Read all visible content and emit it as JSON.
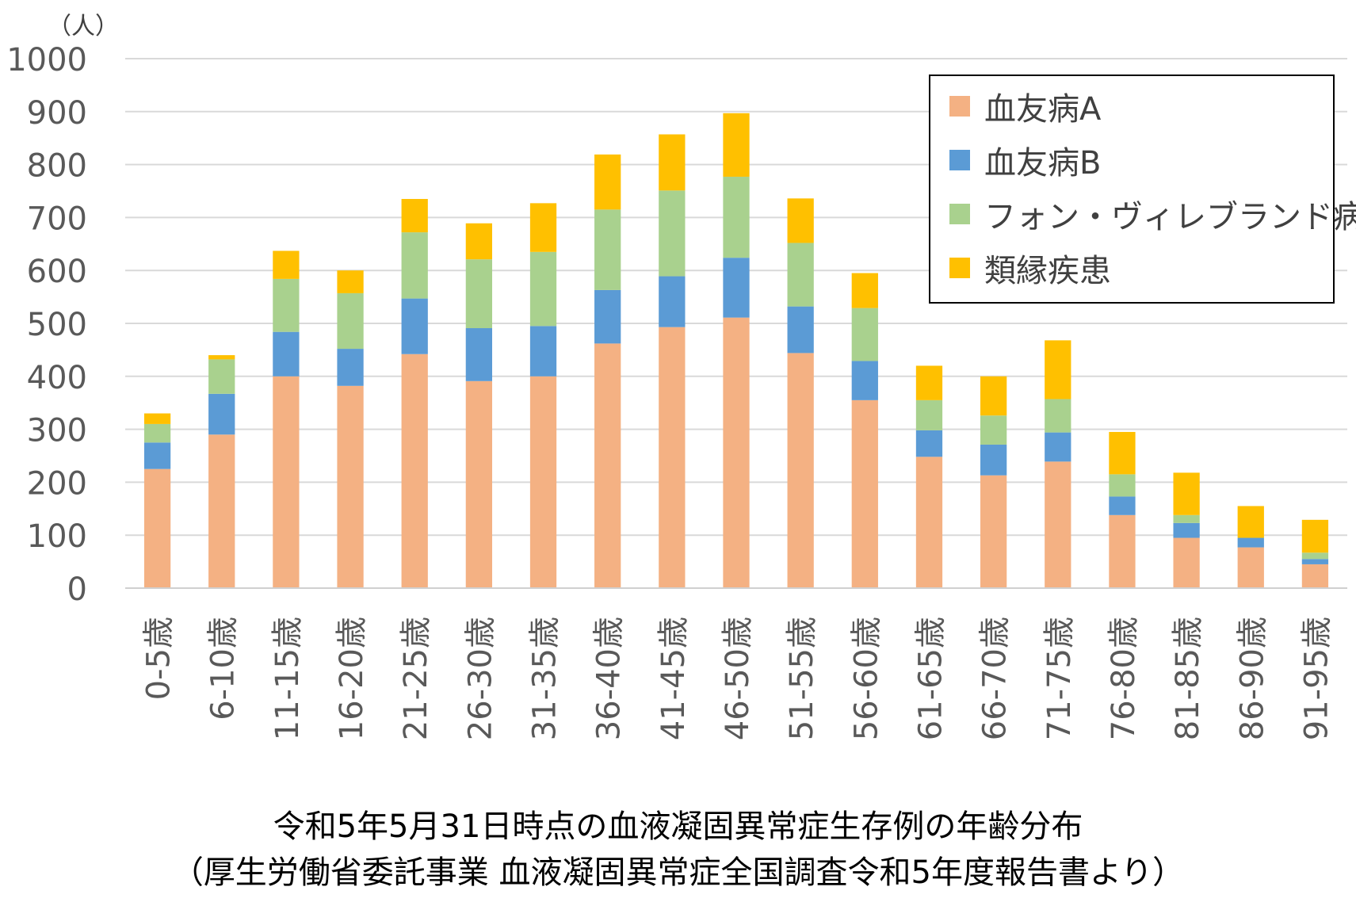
{
  "chart_data": {
    "type": "bar",
    "stacked": true,
    "unit_label": "（人）",
    "ylim": [
      0,
      1000
    ],
    "yticks": [
      0,
      100,
      200,
      300,
      400,
      500,
      600,
      700,
      800,
      900,
      1000
    ],
    "grid": true,
    "legend_position": "top-right",
    "categories": [
      "0-5歳",
      "6-10歳",
      "11-15歳",
      "16-20歳",
      "21-25歳",
      "26-30歳",
      "31-35歳",
      "36-40歳",
      "41-45歳",
      "46-50歳",
      "51-55歳",
      "56-60歳",
      "61-65歳",
      "66-70歳",
      "71-75歳",
      "76-80歳",
      "81-85歳",
      "86-90歳",
      "91-95歳"
    ],
    "series": [
      {
        "name": "血友病A",
        "color": "#F4B183",
        "values": [
          225,
          290,
          400,
          382,
          442,
          391,
          400,
          462,
          493,
          511,
          444,
          355,
          248,
          213,
          239,
          138,
          95,
          77,
          45
        ]
      },
      {
        "name": "血友病B",
        "color": "#5B9BD5",
        "values": [
          50,
          77,
          84,
          70,
          105,
          100,
          95,
          101,
          96,
          113,
          88,
          74,
          50,
          58,
          55,
          35,
          28,
          18,
          10
        ]
      },
      {
        "name": "フォン・ヴィレブランド病",
        "color": "#A9D18E",
        "values": [
          35,
          65,
          100,
          105,
          125,
          130,
          140,
          152,
          162,
          153,
          120,
          100,
          57,
          55,
          63,
          42,
          15,
          0,
          12
        ]
      },
      {
        "name": "類縁疾患",
        "color": "#FFC000",
        "values": [
          20,
          8,
          53,
          43,
          63,
          68,
          92,
          104,
          106,
          120,
          84,
          66,
          65,
          74,
          111,
          80,
          80,
          60,
          62
        ]
      }
    ]
  },
  "caption": {
    "line1": "令和5年5月31日時点の血液凝固異常症生存例の年齢分布",
    "line2": "（厚生労働省委託事業 血液凝固異常症全国調査令和5年度報告書より）"
  }
}
